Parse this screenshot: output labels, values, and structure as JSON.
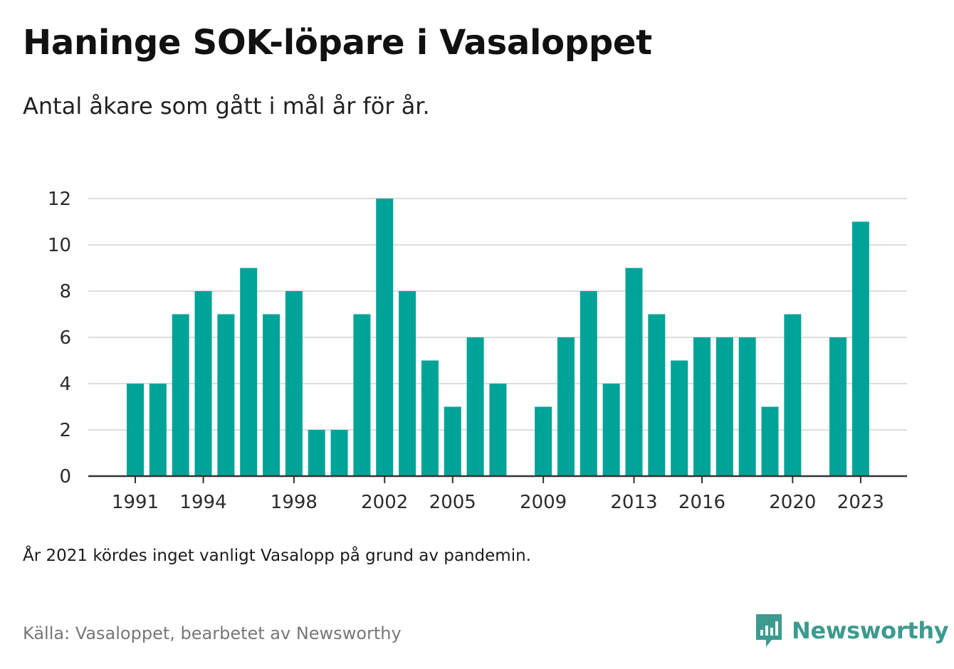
{
  "title": "Haninge SOK-löpare i Vasaloppet",
  "subtitle": "Antal åkare som gått i mål år för år.",
  "note": "År 2021 kördes inget vanligt Vasalopp på grund av pandemin.",
  "source": "Källa: Vasaloppet, bearbetet av Newsworthy",
  "brand": {
    "name": "Newsworthy",
    "icon": "newsworthy-logo-icon",
    "color": "#3d9a8f"
  },
  "colors": {
    "bar": "#00a398",
    "grid": "#dddddd",
    "axis": "#333333"
  },
  "chart_data": {
    "type": "bar",
    "x": [
      1991,
      1992,
      1993,
      1994,
      1995,
      1996,
      1997,
      1998,
      1999,
      2000,
      2001,
      2002,
      2003,
      2004,
      2005,
      2006,
      2007,
      2008,
      2009,
      2010,
      2011,
      2012,
      2013,
      2014,
      2015,
      2016,
      2017,
      2018,
      2019,
      2020,
      2021,
      2022,
      2023
    ],
    "values": [
      4,
      4,
      7,
      8,
      7,
      9,
      7,
      8,
      2,
      2,
      7,
      12,
      8,
      5,
      3,
      6,
      4,
      0,
      3,
      6,
      8,
      4,
      9,
      7,
      5,
      6,
      6,
      6,
      3,
      7,
      0,
      6,
      11
    ],
    "xticks": [
      1991,
      1994,
      1998,
      2002,
      2005,
      2009,
      2013,
      2016,
      2020,
      2023
    ],
    "yticks": [
      0,
      2,
      4,
      6,
      8,
      10,
      12
    ],
    "ylim": [
      0,
      12
    ],
    "grid": true,
    "xlabel": "",
    "ylabel": ""
  }
}
